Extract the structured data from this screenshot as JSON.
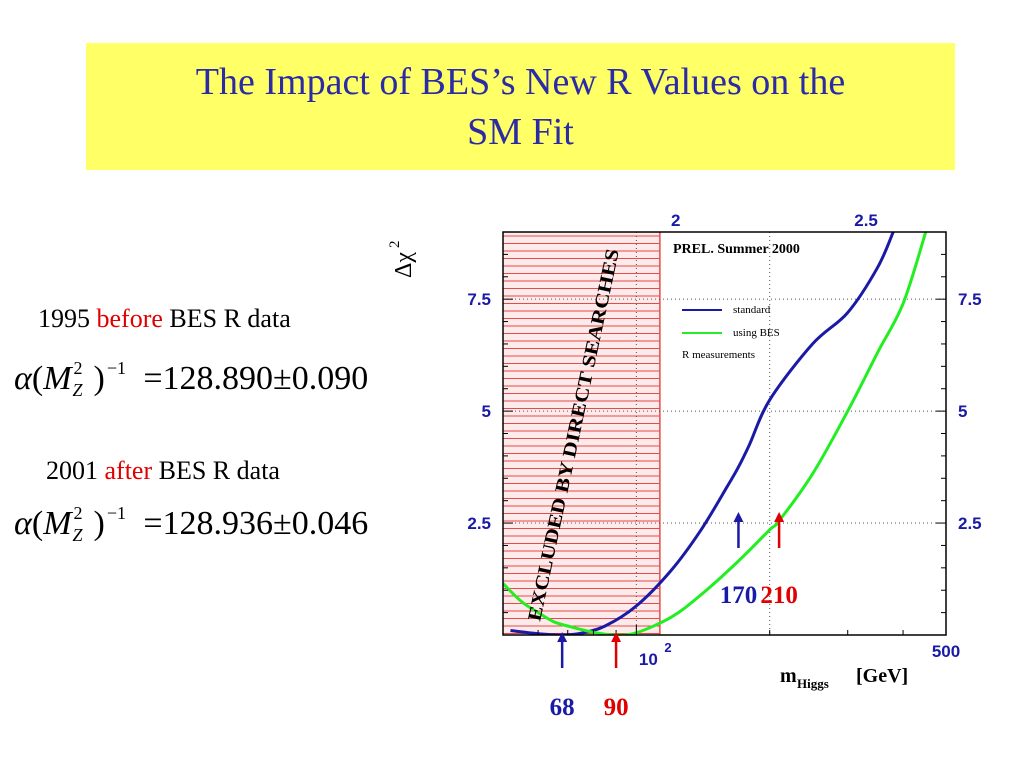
{
  "title": {
    "line1": "The Impact of BES’s New R Values on the",
    "line2": "SM Fit"
  },
  "left_panel": {
    "before": {
      "year": "1995",
      "word": "before",
      "rest": "BES R data",
      "value": "128.890",
      "pm": "±",
      "err": "0.090"
    },
    "after": {
      "year": "2001",
      "word": "after",
      "rest": "BES R data",
      "value": "128.936",
      "pm": "±",
      "err": "0.046"
    },
    "eq_alpha": "α",
    "eq_open": "(",
    "eq_M": "M",
    "eq_sub": "Z",
    "eq_sup2": "2",
    "eq_close": ")",
    "eq_sup_exp": "−1",
    "eq_equals": "="
  },
  "colors": {
    "title_bg": "#ffff66",
    "title_text": "#2b2ba6",
    "axis_blue": "#1a1aa6",
    "red": "#e00000",
    "standard": "#1a1aa6",
    "using_bes": "#22ee22",
    "hatch": "#e84a4a"
  },
  "chart_data": {
    "type": "line",
    "x_scale": "log",
    "xlim": [
      50,
      500
    ],
    "ylim": [
      0,
      9
    ],
    "ylabel": "Δχ²",
    "ylabel_sup": "2",
    "xlabel_main": "m",
    "xlabel_sub": "Higgs",
    "xlabel_unit": "[GeV]",
    "annotation_box": "PREL. Summer 2000",
    "excluded_label": "EXCLUDED BY DIRECT SEARCHES",
    "excluded_region": [
      50,
      113
    ],
    "y_ticks_left": [
      {
        "value": 2.5,
        "label": "2.5"
      },
      {
        "value": 5,
        "label": "5"
      },
      {
        "value": 7.5,
        "label": "7.5"
      }
    ],
    "y_ticks_right": [
      {
        "value": 2.5,
        "label": "2.5"
      },
      {
        "value": 5,
        "label": "5"
      },
      {
        "value": 7.5,
        "label": "7.5"
      }
    ],
    "top_ticks": [
      {
        "value": 2,
        "label": "2"
      },
      {
        "value": 2.5,
        "label": "2.5"
      }
    ],
    "x_tick_labels": {
      "hundred_base": "10",
      "hundred_exp": "2",
      "five_hundred": "500"
    },
    "legend": [
      {
        "name": "standard",
        "color": "#1a1aa6"
      },
      {
        "name": "using BES",
        "color": "#22ee22"
      },
      {
        "name": "R measurements",
        "color": ""
      }
    ],
    "series": [
      {
        "name": "standard",
        "color": "#1a1aa6",
        "x": [
          52,
          56,
          60,
          64,
          68,
          75,
          85,
          100,
          120,
          140,
          160,
          170,
          180,
          200,
          250,
          300,
          350,
          380
        ],
        "y": [
          0.1,
          0.06,
          0.03,
          0.01,
          0.0,
          0.04,
          0.2,
          0.65,
          1.45,
          2.35,
          3.3,
          3.75,
          4.25,
          5.25,
          6.5,
          7.2,
          8.2,
          9.0
        ]
      },
      {
        "name": "using BES",
        "color": "#22ee22",
        "x": [
          50,
          55,
          60,
          65,
          70,
          80,
          90,
          100,
          120,
          140,
          170,
          200,
          210,
          250,
          300,
          350,
          400,
          450
        ],
        "y": [
          1.15,
          0.75,
          0.5,
          0.3,
          0.2,
          0.06,
          0.0,
          0.05,
          0.4,
          0.9,
          1.65,
          2.35,
          2.55,
          3.6,
          5.0,
          6.3,
          7.4,
          9.0
        ]
      }
    ],
    "arrows": [
      {
        "x": 68,
        "label": "68",
        "color": "#1a1aa6",
        "level": "bottom"
      },
      {
        "x": 90,
        "label": "90",
        "color": "#e00000",
        "level": "bottom"
      },
      {
        "x": 170,
        "label": "170",
        "color": "#1a1aa6",
        "level": "curve"
      },
      {
        "x": 210,
        "label": "210",
        "color": "#e00000",
        "level": "curve"
      }
    ]
  }
}
